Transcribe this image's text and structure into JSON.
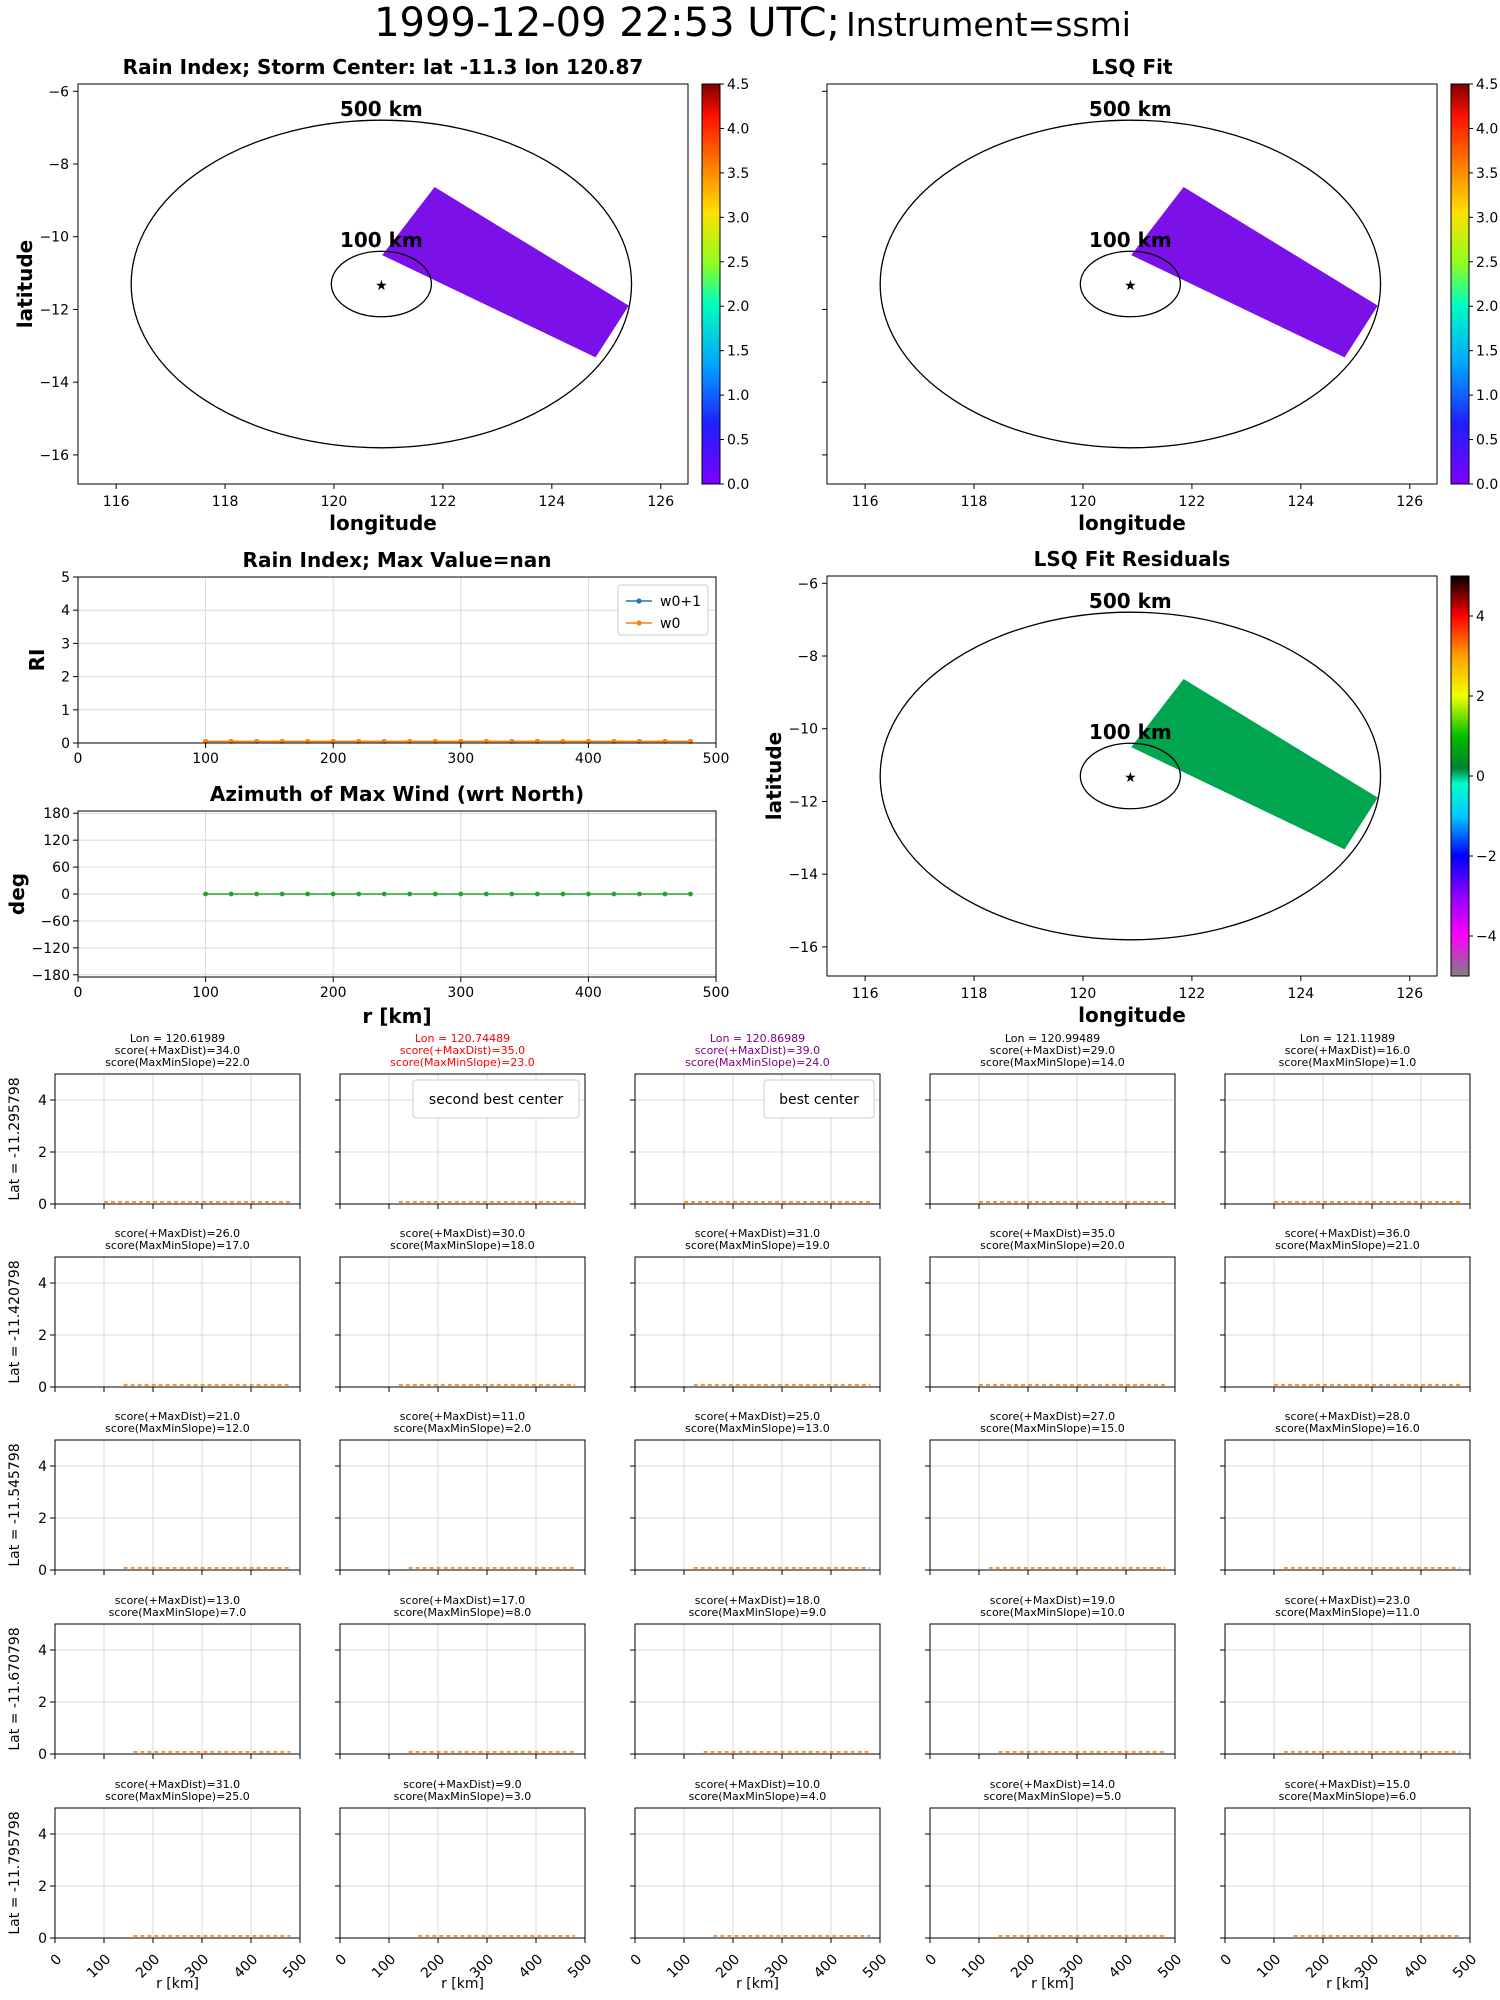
{
  "figure": {
    "title_main": "1999-12-09 22:53 UTC;",
    "title_sub": "Instrument=ssmi"
  },
  "chart_data": [
    {
      "id": "rain-index-map",
      "type": "heatmap",
      "title": "Rain Index; Storm Center: lat -11.3 lon 120.87",
      "xlabel": "longitude",
      "ylabel": "latitude",
      "xlim": [
        115.3,
        126.5
      ],
      "ylim": [
        -16.8,
        -5.8
      ],
      "xticks": [
        116,
        118,
        120,
        122,
        124,
        126
      ],
      "yticks": [
        -6,
        -8,
        -10,
        -12,
        -14,
        -16
      ],
      "center": {
        "lon": 120.87,
        "lat": -11.3
      },
      "rings": [
        {
          "label": "500 km",
          "radius_km": 500
        },
        {
          "label": "100 km",
          "radius_km": 100
        }
      ],
      "swath": {
        "corners": [
          [
            121.85,
            -8.65
          ],
          [
            125.4,
            -11.9
          ],
          [
            124.8,
            -13.3
          ],
          [
            120.9,
            -10.5
          ]
        ],
        "value": 0.0,
        "color": "#7b10e8"
      },
      "colorbar": {
        "ticks": [
          0.0,
          0.5,
          1.0,
          1.5,
          2.0,
          2.5,
          3.0,
          3.5,
          4.0,
          4.5
        ],
        "range": [
          0.0,
          4.5
        ],
        "colormap": "jet-like"
      }
    },
    {
      "id": "lsq-fit-map",
      "type": "heatmap",
      "title": "LSQ Fit",
      "xlabel": "longitude",
      "ylabel": "",
      "xlim": [
        115.3,
        126.5
      ],
      "ylim": [
        -16.8,
        -5.8
      ],
      "xticks": [
        116,
        118,
        120,
        122,
        124,
        126
      ],
      "yticks": [
        -6,
        -8,
        -10,
        -12,
        -14,
        -16
      ],
      "center": {
        "lon": 120.87,
        "lat": -11.3
      },
      "rings": [
        {
          "label": "500 km",
          "radius_km": 500
        },
        {
          "label": "100 km",
          "radius_km": 100
        }
      ],
      "swath": {
        "corners": [
          [
            121.85,
            -8.65
          ],
          [
            125.4,
            -11.9
          ],
          [
            124.8,
            -13.3
          ],
          [
            120.9,
            -10.5
          ]
        ],
        "value": 0.0,
        "color": "#7b10e8"
      },
      "colorbar": {
        "ticks": [
          0.0,
          0.5,
          1.0,
          1.5,
          2.0,
          2.5,
          3.0,
          3.5,
          4.0,
          4.5
        ],
        "range": [
          0.0,
          4.5
        ],
        "colormap": "jet-like"
      }
    },
    {
      "id": "rain-index-profile",
      "type": "line",
      "title": "Rain Index; Max Value=nan",
      "xlabel": "",
      "ylabel": "RI",
      "xlim": [
        0,
        500
      ],
      "ylim": [
        0,
        5
      ],
      "xticks": [
        0,
        100,
        200,
        300,
        400,
        500
      ],
      "yticks": [
        0,
        1,
        2,
        3,
        4,
        5
      ],
      "grid": true,
      "legend": "top-right",
      "x": [
        100,
        120,
        140,
        160,
        180,
        200,
        220,
        240,
        260,
        280,
        300,
        320,
        340,
        360,
        380,
        400,
        420,
        440,
        460,
        480
      ],
      "series": [
        {
          "name": "w0+1",
          "color": "#1f77b4",
          "marker": "star",
          "values": [
            0.05,
            0.05,
            0.05,
            0.05,
            0.05,
            0.05,
            0.05,
            0.05,
            0.05,
            0.05,
            0.05,
            0.05,
            0.05,
            0.05,
            0.05,
            0.05,
            0.05,
            0.05,
            0.05,
            0.05
          ]
        },
        {
          "name": "w0",
          "color": "#ff7f0e",
          "marker": "dot",
          "values": [
            0.05,
            0.05,
            0.05,
            0.05,
            0.05,
            0.05,
            0.05,
            0.05,
            0.05,
            0.05,
            0.05,
            0.05,
            0.05,
            0.05,
            0.05,
            0.05,
            0.05,
            0.05,
            0.05,
            0.05
          ]
        }
      ]
    },
    {
      "id": "azimuth-profile",
      "type": "line",
      "title": "Azimuth of Max Wind (wrt North)",
      "xlabel": "r [km]",
      "ylabel": "deg",
      "xlim": [
        0,
        500
      ],
      "ylim": [
        -185,
        185
      ],
      "xticks": [
        0,
        100,
        200,
        300,
        400,
        500
      ],
      "yticks": [
        180,
        120,
        60,
        0,
        -60,
        -120,
        -180
      ],
      "grid": true,
      "x": [
        100,
        120,
        140,
        160,
        180,
        200,
        220,
        240,
        260,
        280,
        300,
        320,
        340,
        360,
        380,
        400,
        420,
        440,
        460,
        480
      ],
      "series": [
        {
          "color": "#2ca02c",
          "marker": "dot",
          "values": [
            0,
            0,
            0,
            0,
            0,
            0,
            0,
            0,
            0,
            0,
            0,
            0,
            0,
            0,
            0,
            0,
            0,
            0,
            0,
            0
          ]
        }
      ]
    },
    {
      "id": "lsq-residuals-map",
      "type": "heatmap",
      "title": "LSQ Fit Residuals",
      "xlabel": "longitude",
      "ylabel": "latitude",
      "xlim": [
        115.3,
        126.5
      ],
      "ylim": [
        -16.8,
        -5.8
      ],
      "xticks": [
        116,
        118,
        120,
        122,
        124,
        126
      ],
      "yticks": [
        -6,
        -8,
        -10,
        -12,
        -14,
        -16
      ],
      "center": {
        "lon": 120.87,
        "lat": -11.3
      },
      "rings": [
        {
          "label": "500 km",
          "radius_km": 500
        },
        {
          "label": "100 km",
          "radius_km": 100
        }
      ],
      "swath": {
        "corners": [
          [
            121.85,
            -8.65
          ],
          [
            125.4,
            -11.9
          ],
          [
            124.8,
            -13.3
          ],
          [
            120.9,
            -10.5
          ]
        ],
        "value": 0.0,
        "color": "#00a550"
      },
      "colorbar": {
        "ticks": [
          4,
          2,
          0,
          -2,
          -4
        ],
        "range": [
          -5,
          5
        ],
        "colormap": "diverging"
      }
    }
  ],
  "grid_panels": {
    "row_labels": [
      "Lat = -11.295798",
      "Lat = -11.420798",
      "Lat = -11.545798",
      "Lat = -11.670798",
      "Lat = -11.795798"
    ],
    "x_tick_labels": [
      "0",
      "100",
      "200",
      "300",
      "400",
      "500"
    ],
    "y_tick_labels": [
      "0",
      "2",
      "4"
    ],
    "xlabel": "r [km]",
    "xlim": [
      0,
      500
    ],
    "ylim": [
      0,
      5
    ],
    "line_color": "#ff7f0e",
    "cells": [
      [
        {
          "lines": [
            "Lon = 120.61989",
            "score(+MaxDist)=34.0",
            "score(MaxMinSlope)=22.0"
          ],
          "color": "#000000",
          "r_start": 100
        },
        {
          "lines": [
            "Lon = 120.74489",
            "score(+MaxDist)=35.0",
            "score(MaxMinSlope)=23.0"
          ],
          "color": "#ff0000",
          "legend": "second best center",
          "r_start": 120
        },
        {
          "lines": [
            "Lon = 120.86989",
            "score(+MaxDist)=39.0",
            "score(MaxMinSlope)=24.0"
          ],
          "color": "#800080",
          "legend": "best center",
          "r_start": 100
        },
        {
          "lines": [
            "Lon = 120.99489",
            "score(+MaxDist)=29.0",
            "score(MaxMinSlope)=14.0"
          ],
          "color": "#000000",
          "r_start": 100
        },
        {
          "lines": [
            "Lon = 121.11989",
            "score(+MaxDist)=16.0",
            "score(MaxMinSlope)=1.0"
          ],
          "color": "#000000",
          "r_start": 100
        }
      ],
      [
        {
          "lines": [
            "score(+MaxDist)=26.0",
            "score(MaxMinSlope)=17.0"
          ],
          "color": "#000000",
          "r_start": 140
        },
        {
          "lines": [
            "score(+MaxDist)=30.0",
            "score(MaxMinSlope)=18.0"
          ],
          "color": "#000000",
          "r_start": 120
        },
        {
          "lines": [
            "score(+MaxDist)=31.0",
            "score(MaxMinSlope)=19.0"
          ],
          "color": "#000000",
          "r_start": 120
        },
        {
          "lines": [
            "score(+MaxDist)=35.0",
            "score(MaxMinSlope)=20.0"
          ],
          "color": "#000000",
          "r_start": 100
        },
        {
          "lines": [
            "score(+MaxDist)=36.0",
            "score(MaxMinSlope)=21.0"
          ],
          "color": "#000000",
          "r_start": 100
        }
      ],
      [
        {
          "lines": [
            "score(+MaxDist)=21.0",
            "score(MaxMinSlope)=12.0"
          ],
          "color": "#000000",
          "r_start": 140
        },
        {
          "lines": [
            "score(+MaxDist)=11.0",
            "score(MaxMinSlope)=2.0"
          ],
          "color": "#000000",
          "r_start": 140
        },
        {
          "lines": [
            "score(+MaxDist)=25.0",
            "score(MaxMinSlope)=13.0"
          ],
          "color": "#000000",
          "r_start": 120
        },
        {
          "lines": [
            "score(+MaxDist)=27.0",
            "score(MaxMinSlope)=15.0"
          ],
          "color": "#000000",
          "r_start": 120
        },
        {
          "lines": [
            "score(+MaxDist)=28.0",
            "score(MaxMinSlope)=16.0"
          ],
          "color": "#000000",
          "r_start": 120
        }
      ],
      [
        {
          "lines": [
            "score(+MaxDist)=13.0",
            "score(MaxMinSlope)=7.0"
          ],
          "color": "#000000",
          "r_start": 160
        },
        {
          "lines": [
            "score(+MaxDist)=17.0",
            "score(MaxMinSlope)=8.0"
          ],
          "color": "#000000",
          "r_start": 140
        },
        {
          "lines": [
            "score(+MaxDist)=18.0",
            "score(MaxMinSlope)=9.0"
          ],
          "color": "#000000",
          "r_start": 140
        },
        {
          "lines": [
            "score(+MaxDist)=19.0",
            "score(MaxMinSlope)=10.0"
          ],
          "color": "#000000",
          "r_start": 140
        },
        {
          "lines": [
            "score(+MaxDist)=23.0",
            "score(MaxMinSlope)=11.0"
          ],
          "color": "#000000",
          "r_start": 120
        }
      ],
      [
        {
          "lines": [
            "score(+MaxDist)=31.0",
            "score(MaxMinSlope)=25.0"
          ],
          "color": "#000000",
          "r_start": 160
        },
        {
          "lines": [
            "score(+MaxDist)=9.0",
            "score(MaxMinSlope)=3.0"
          ],
          "color": "#000000",
          "r_start": 160
        },
        {
          "lines": [
            "score(+MaxDist)=10.0",
            "score(MaxMinSlope)=4.0"
          ],
          "color": "#000000",
          "r_start": 160
        },
        {
          "lines": [
            "score(+MaxDist)=14.0",
            "score(MaxMinSlope)=5.0"
          ],
          "color": "#000000",
          "r_start": 140
        },
        {
          "lines": [
            "score(+MaxDist)=15.0",
            "score(MaxMinSlope)=6.0"
          ],
          "color": "#000000",
          "r_start": 140
        }
      ]
    ]
  }
}
